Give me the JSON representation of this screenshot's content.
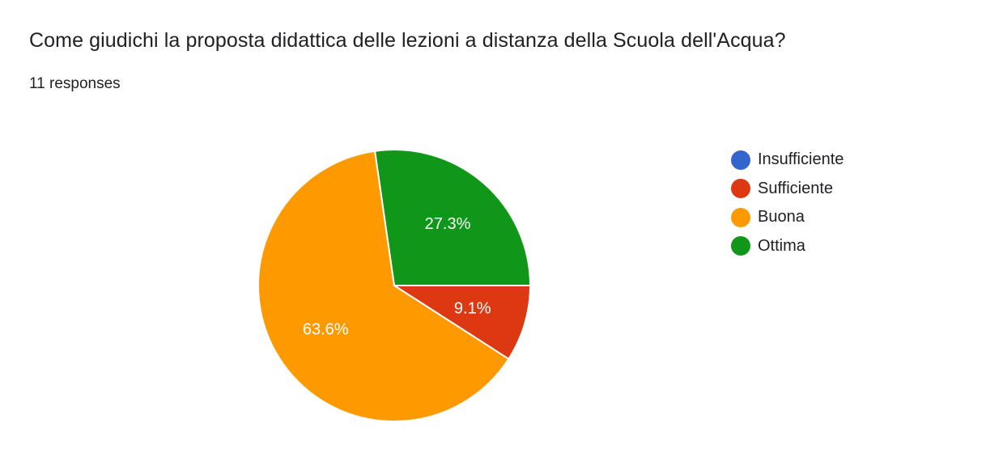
{
  "question": {
    "title": "Come giudichi la proposta didattica delle lezioni a distanza della Scuola dell'Acqua?",
    "responses": "11 responses"
  },
  "chart_data": {
    "type": "pie",
    "categories": [
      "Insufficiente",
      "Sufficiente",
      "Buona",
      "Ottima"
    ],
    "values": [
      0,
      1,
      7,
      3
    ],
    "percent_labels": [
      "",
      "9.1%",
      "63.6%",
      "27.3%"
    ],
    "colors": [
      "#3366cc",
      "#dc3912",
      "#ff9900",
      "#109618"
    ],
    "start": "3 o'clock",
    "direction": "clockwise",
    "slice_order": [
      "Sufficiente",
      "Buona",
      "Ottima"
    ],
    "legend_position": "right"
  }
}
